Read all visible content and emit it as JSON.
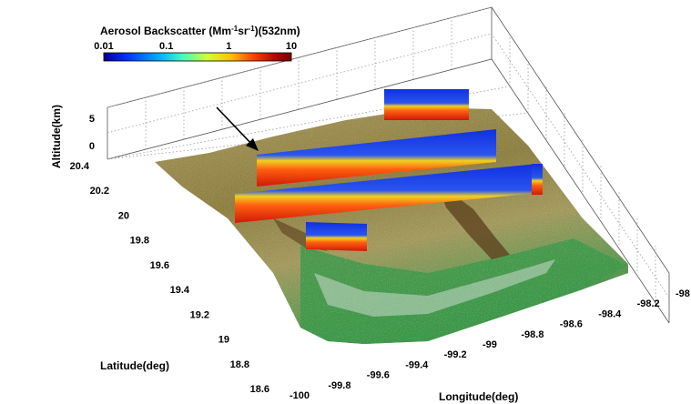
{
  "chart_data": {
    "type": "3d-surface-with-curtains",
    "colorbar": {
      "title_main": "Aerosol Backscatter (Mm",
      "title_sup1": "-1",
      "title_mid": "sr",
      "title_sup2": "-1",
      "title_end": ")(532nm)",
      "scale": "log",
      "range": [
        0.01,
        10
      ],
      "tick_labels": [
        "0.01",
        "0.1",
        "1",
        "10"
      ],
      "colormap": [
        "#00008f",
        "#0030ff",
        "#00b0ff",
        "#40ffc0",
        "#d0ff30",
        "#ffc000",
        "#ff4000",
        "#b00000",
        "#7a0000"
      ]
    },
    "x_axis": {
      "label": "Longitude(deg)",
      "ticks": [
        "-100",
        "-99.8",
        "-99.6",
        "-99.4",
        "-99.2",
        "-99",
        "-98.8",
        "-98.6",
        "-98.4",
        "-98.2",
        "-98"
      ]
    },
    "y_axis": {
      "label": "Latitude(deg)",
      "ticks": [
        "18.6",
        "18.8",
        "19",
        "19.2",
        "19.4",
        "19.6",
        "19.8",
        "20",
        "20.2",
        "20.4"
      ]
    },
    "z_axis": {
      "label": "Altitude(km)",
      "ticks": [
        "0",
        "5"
      ]
    },
    "colors": {
      "terrain_low": "#8a7a3c",
      "terrain_high": "#c9b884",
      "forest": "#3c9a4a",
      "snow": "#e8e8e8"
    }
  }
}
